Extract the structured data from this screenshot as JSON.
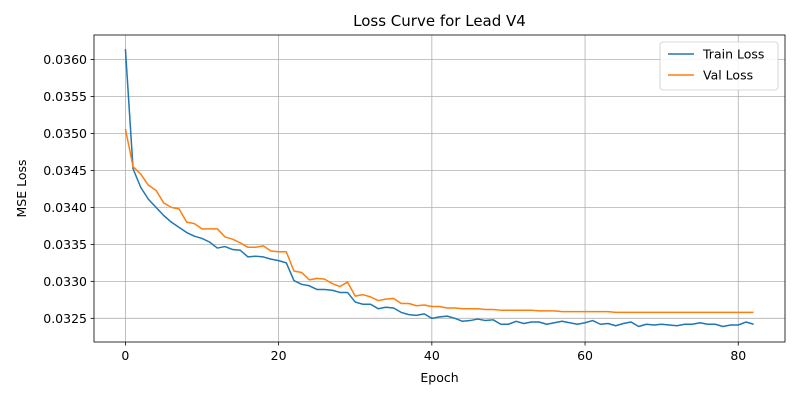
{
  "chart_data": {
    "type": "line",
    "title": "Loss Curve for Lead V4",
    "xlabel": "Epoch",
    "ylabel": "MSE Loss",
    "xlim": [
      -4.1,
      86.1
    ],
    "ylim": [
      0.03218,
      0.03633
    ],
    "xticks": [
      0,
      20,
      40,
      60,
      80
    ],
    "yticks": [
      0.0325,
      0.033,
      0.0335,
      0.034,
      0.0345,
      0.035,
      0.0355,
      0.036
    ],
    "ytick_labels": [
      "0.0325",
      "0.0330",
      "0.0335",
      "0.0340",
      "0.0345",
      "0.0350",
      "0.0355",
      "0.0360"
    ],
    "grid": true,
    "legend_position": "top-right",
    "series": [
      {
        "name": "Train Loss",
        "color": "#1f77b4",
        "values": [
          0.03614,
          0.03452,
          0.03427,
          0.03411,
          0.034,
          0.03389,
          0.0338,
          0.03373,
          0.03366,
          0.03361,
          0.03358,
          0.03353,
          0.03345,
          0.03347,
          0.03343,
          0.03342,
          0.03333,
          0.03334,
          0.03333,
          0.0333,
          0.03328,
          0.03325,
          0.03301,
          0.03296,
          0.03294,
          0.03289,
          0.03289,
          0.03288,
          0.03285,
          0.03285,
          0.03272,
          0.03269,
          0.03269,
          0.03263,
          0.03265,
          0.03264,
          0.03258,
          0.03255,
          0.03254,
          0.03256,
          0.0325,
          0.03252,
          0.03253,
          0.0325,
          0.03246,
          0.03247,
          0.03249,
          0.03247,
          0.03248,
          0.03242,
          0.03242,
          0.03246,
          0.03243,
          0.03245,
          0.03245,
          0.03242,
          0.03244,
          0.03246,
          0.03244,
          0.03242,
          0.03244,
          0.03247,
          0.03242,
          0.03243,
          0.0324,
          0.03243,
          0.03245,
          0.03239,
          0.03242,
          0.03241,
          0.03242,
          0.03241,
          0.0324,
          0.03242,
          0.03242,
          0.03244,
          0.03242,
          0.03242,
          0.03239,
          0.03241,
          0.03241,
          0.03245,
          0.03242
        ]
      },
      {
        "name": "Val Loss",
        "color": "#ff7f0e",
        "values": [
          0.03506,
          0.03455,
          0.03445,
          0.0343,
          0.03423,
          0.03406,
          0.034,
          0.03398,
          0.0338,
          0.03378,
          0.03371,
          0.03371,
          0.03371,
          0.0336,
          0.03357,
          0.03352,
          0.03346,
          0.03346,
          0.03348,
          0.03341,
          0.0334,
          0.0334,
          0.03314,
          0.03312,
          0.03302,
          0.03304,
          0.03303,
          0.03297,
          0.03293,
          0.03299,
          0.0328,
          0.03282,
          0.03279,
          0.03274,
          0.03276,
          0.03277,
          0.0327,
          0.0327,
          0.03267,
          0.03268,
          0.03266,
          0.03266,
          0.03264,
          0.03264,
          0.03263,
          0.03263,
          0.03263,
          0.03262,
          0.03262,
          0.03261,
          0.03261,
          0.03261,
          0.03261,
          0.03261,
          0.0326,
          0.0326,
          0.0326,
          0.03259,
          0.03259,
          0.03259,
          0.03259,
          0.03259,
          0.03259,
          0.03259,
          0.03258,
          0.03258,
          0.03258,
          0.03258,
          0.03258,
          0.03258,
          0.03258,
          0.03258,
          0.03258,
          0.03258,
          0.03258,
          0.03258,
          0.03258,
          0.03258,
          0.03258,
          0.03258,
          0.03258,
          0.03258,
          0.03258
        ]
      }
    ]
  }
}
